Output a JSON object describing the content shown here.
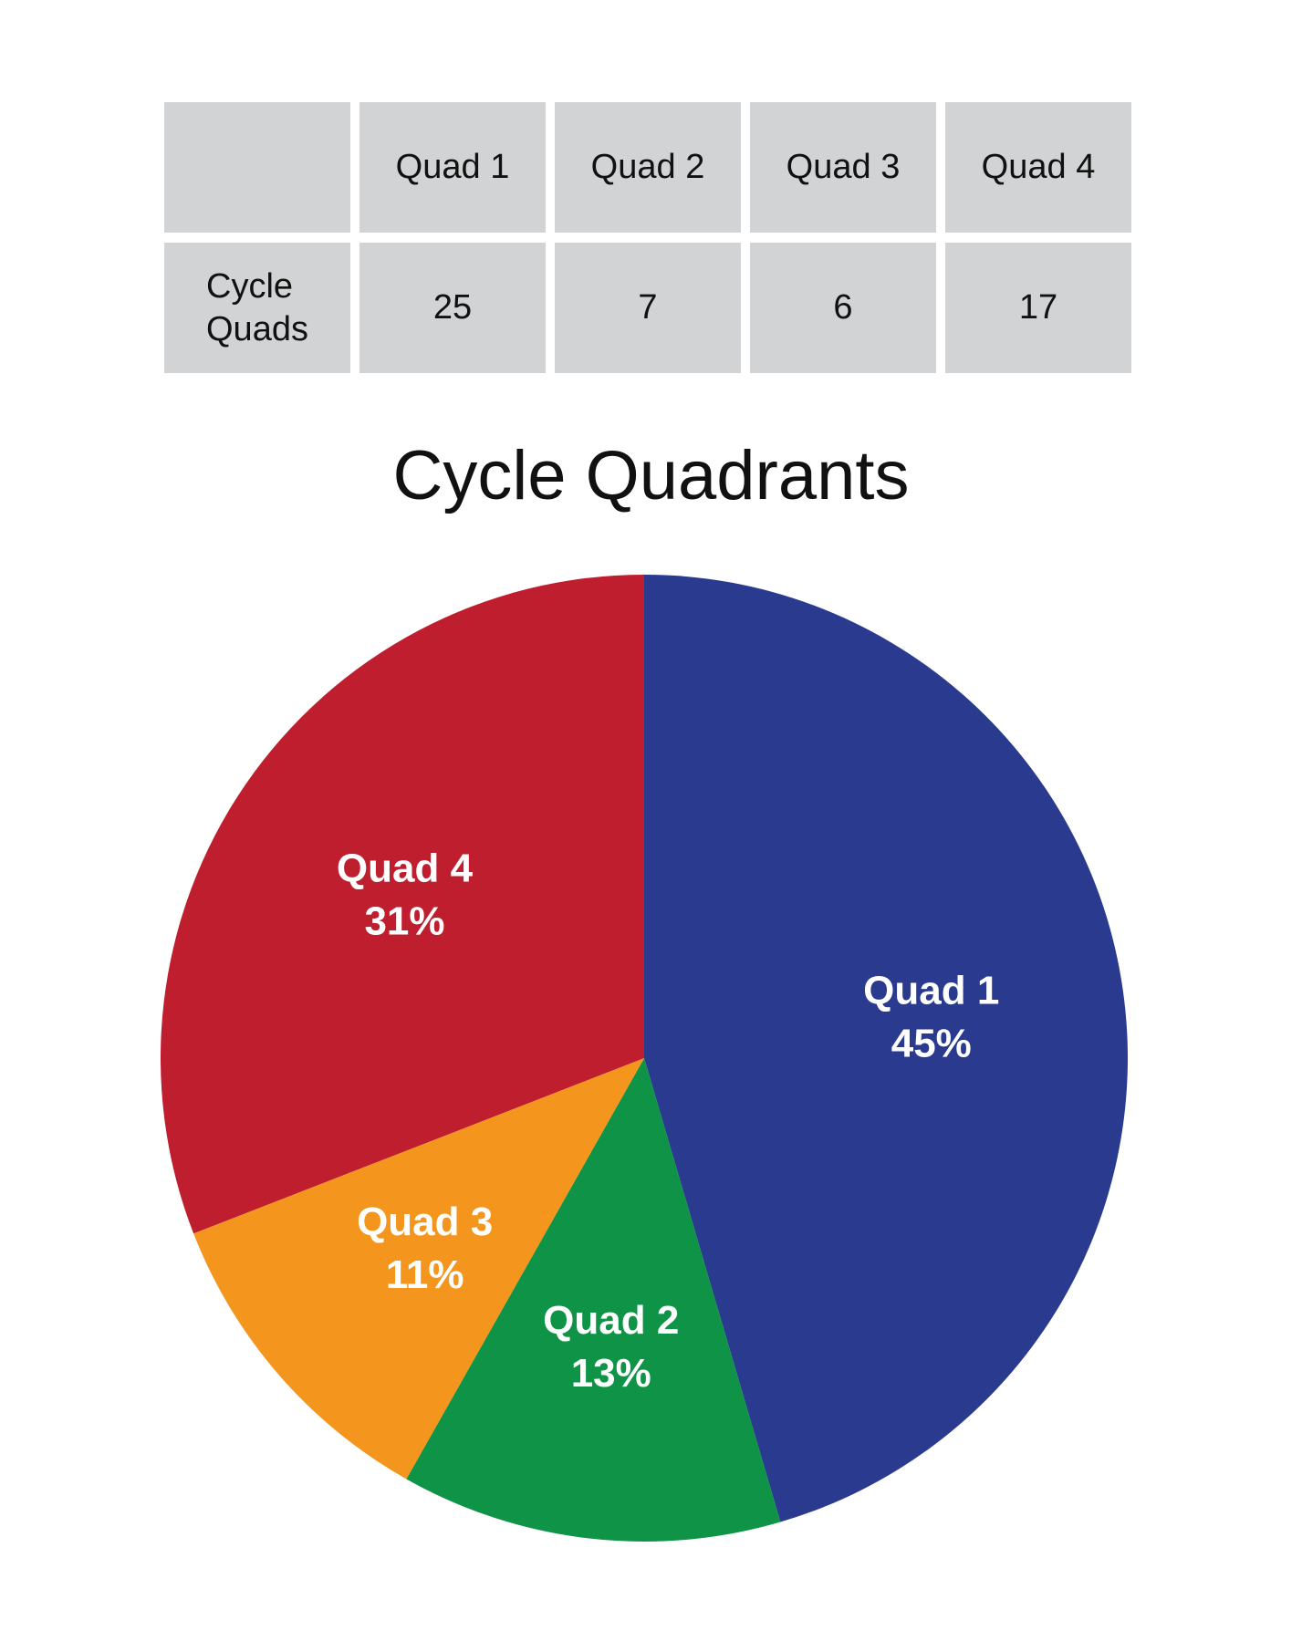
{
  "table": {
    "headers": [
      "",
      "Quad 1",
      "Quad 2",
      "Quad 3",
      "Quad 4"
    ],
    "row": {
      "label": "Cycle\nQuads",
      "values": [
        "25",
        "7",
        "6",
        "17"
      ]
    }
  },
  "chart_data": {
    "type": "pie",
    "title": "Cycle Quadrants",
    "grid": false,
    "legend": "none",
    "start_angle_deg": 0,
    "direction": "clockwise",
    "slices": [
      {
        "label": "Quad 1",
        "value": 25,
        "percent_label": "45%",
        "color": "#293a8f"
      },
      {
        "label": "Quad 2",
        "value": 7,
        "percent_label": "13%",
        "color": "#0f9447"
      },
      {
        "label": "Quad 3",
        "value": 6,
        "percent_label": "11%",
        "color": "#f4961e"
      },
      {
        "label": "Quad 4",
        "value": 17,
        "percent_label": "31%",
        "color": "#be1e2d"
      }
    ]
  }
}
